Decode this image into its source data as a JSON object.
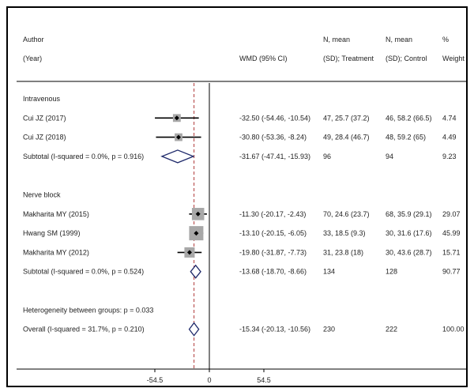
{
  "chart_data": {
    "type": "forest",
    "headers": {
      "study_1": "Author",
      "study_2": "(Year)",
      "wmd": "WMD (95% CI)",
      "treat_1": "N, mean",
      "treat_2": "(SD); Treatment",
      "ctrl_1": "N, mean",
      "ctrl_2": "(SD); Control",
      "weight_1": "%",
      "weight_2": "Weight"
    },
    "rows": [
      {
        "kind": "group",
        "label": "Intravenous"
      },
      {
        "kind": "study",
        "label": "Cui JZ (2017)",
        "est": -32.5,
        "lo": -54.46,
        "hi": -10.54,
        "ci_text": "-32.50 (-54.46, -10.54)",
        "treatment": "47, 25.7 (37.2)",
        "control": "46, 58.2 (66.5)",
        "weight": "4.74"
      },
      {
        "kind": "study",
        "label": "Cui JZ (2018)",
        "est": -30.8,
        "lo": -53.36,
        "hi": -8.24,
        "ci_text": "-30.80 (-53.36, -8.24)",
        "treatment": "49, 28.4 (46.7)",
        "control": "48, 59.2 (65)",
        "weight": "4.49"
      },
      {
        "kind": "subtotal",
        "label": "Subtotal  (I-squared = 0.0%, p = 0.916)",
        "est": -31.67,
        "lo": -47.41,
        "hi": -15.93,
        "ci_text": "-31.67 (-47.41, -15.93)",
        "treatment": "96",
        "control": "94",
        "weight": "9.23"
      },
      {
        "kind": "spacer"
      },
      {
        "kind": "group",
        "label": "Nerve block"
      },
      {
        "kind": "study",
        "label": "Makharita MY (2015)",
        "est": -11.3,
        "lo": -20.17,
        "hi": -2.43,
        "ci_text": "-11.30 (-20.17, -2.43)",
        "treatment": "70, 24.6 (23.7)",
        "control": "68, 35.9 (29.1)",
        "weight": "29.07"
      },
      {
        "kind": "study",
        "label": "Hwang SM (1999)",
        "est": -13.1,
        "lo": -20.15,
        "hi": -6.05,
        "ci_text": "-13.10 (-20.15, -6.05)",
        "treatment": "33, 18.5 (9.3)",
        "control": "30, 31.6 (17.6)",
        "weight": "45.99"
      },
      {
        "kind": "study",
        "label": "Makharita MY (2012)",
        "est": -19.8,
        "lo": -31.87,
        "hi": -7.73,
        "ci_text": "-19.80 (-31.87, -7.73)",
        "treatment": "31, 23.8 (18)",
        "control": "30, 43.6 (28.7)",
        "weight": "15.71"
      },
      {
        "kind": "subtotal",
        "label": "Subtotal  (I-squared = 0.0%, p = 0.524)",
        "est": -13.68,
        "lo": -18.7,
        "hi": -8.66,
        "ci_text": "-13.68 (-18.70, -8.66)",
        "treatment": "134",
        "control": "128",
        "weight": "90.77"
      },
      {
        "kind": "spacer"
      },
      {
        "kind": "note",
        "label": "Heterogeneity between groups: p = 0.033"
      },
      {
        "kind": "overall",
        "label": "Overall  (I-squared = 31.7%, p = 0.210)",
        "est": -15.34,
        "lo": -20.13,
        "hi": -10.56,
        "ci_text": "-15.34 (-20.13, -10.56)",
        "treatment": "230",
        "control": "222",
        "weight": "100.00"
      }
    ],
    "x_axis": {
      "min": -54.5,
      "max": 54.5,
      "ticks": [
        "-54.5",
        "0",
        "54.5"
      ]
    },
    "null_line": 0,
    "overall_line": -15.34,
    "colors": {
      "diamond": "#1f2a6b",
      "overall_line": "#b03a3a",
      "box": "#a8a8a8",
      "point": "#000000",
      "frame": "#000000"
    }
  }
}
